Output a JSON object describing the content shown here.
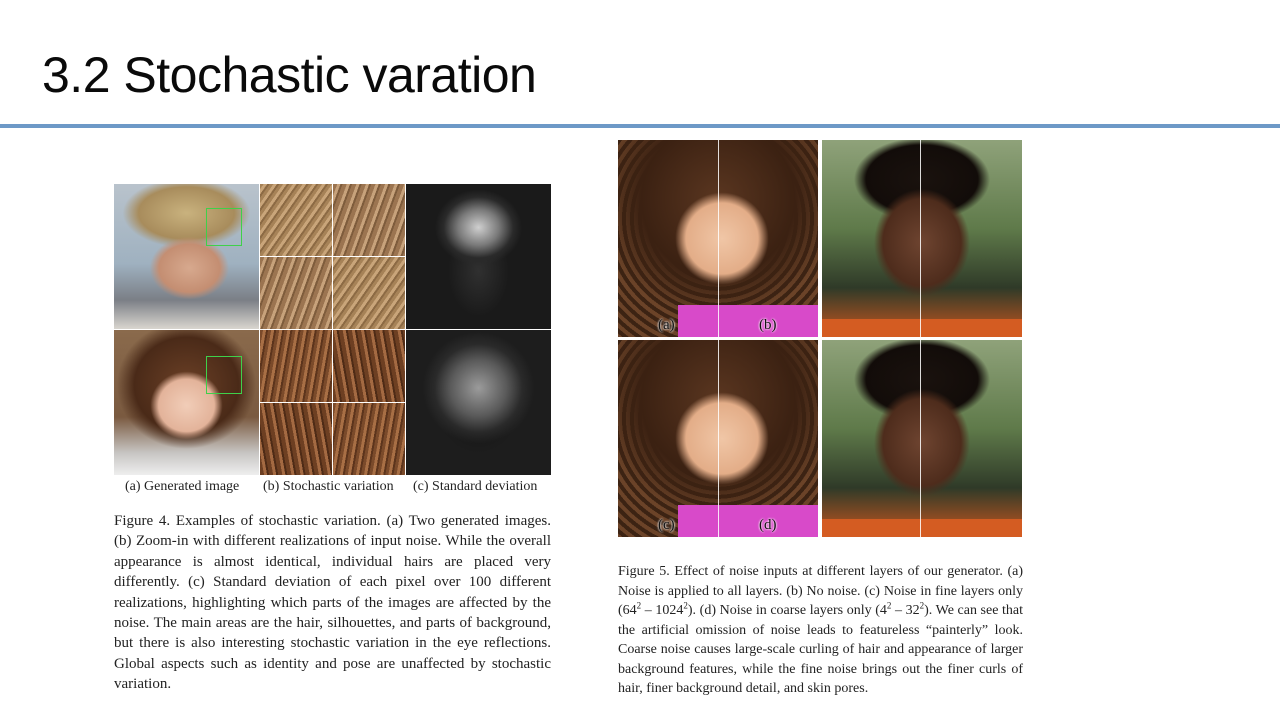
{
  "slide": {
    "title": "3.2 Stochastic varation"
  },
  "figure4": {
    "subcaptions": {
      "a": "(a) Generated image",
      "b": "(b) Stochastic variation",
      "c": "(c) Standard deviation"
    },
    "caption": "Figure 4. Examples of stochastic variation. (a) Two generated images. (b) Zoom-in with different realizations of input noise. While the overall appearance is almost identical, individual hairs are placed very differently. (c) Standard deviation of each pixel over 100 different realizations, highlighting which parts of the images are affected by the noise. The main areas are the hair, silhouettes, and parts of background, but there is also interesting stochastic variation in the eye reflections. Global aspects such as identity and pose are unaffected by stochastic variation."
  },
  "figure5": {
    "panel_labels": {
      "a": "(a)",
      "b": "(b)",
      "c": "(c)",
      "d": "(d)"
    },
    "caption": {
      "part1": "Figure 5. Effect of noise inputs at different layers of our generator. (a) Noise is applied to all layers. (b) No noise. (c) Noise in fine layers only (",
      "fine_range_a": "64",
      "fine_range_sep": " – ",
      "fine_range_b": "1024",
      "part2": "). (d) Noise in coarse layers only (",
      "coarse_range_a": "4",
      "coarse_range_sep": " – ",
      "coarse_range_b": "32",
      "part3": "). We can see that the artificial omission of noise leads to featureless “painterly” look. Coarse noise causes large-scale curling of hair and appearance of larger background features, while the fine noise brings out the finer curls of hair, finer background detail, and skin pores.",
      "exponent": "2"
    }
  }
}
